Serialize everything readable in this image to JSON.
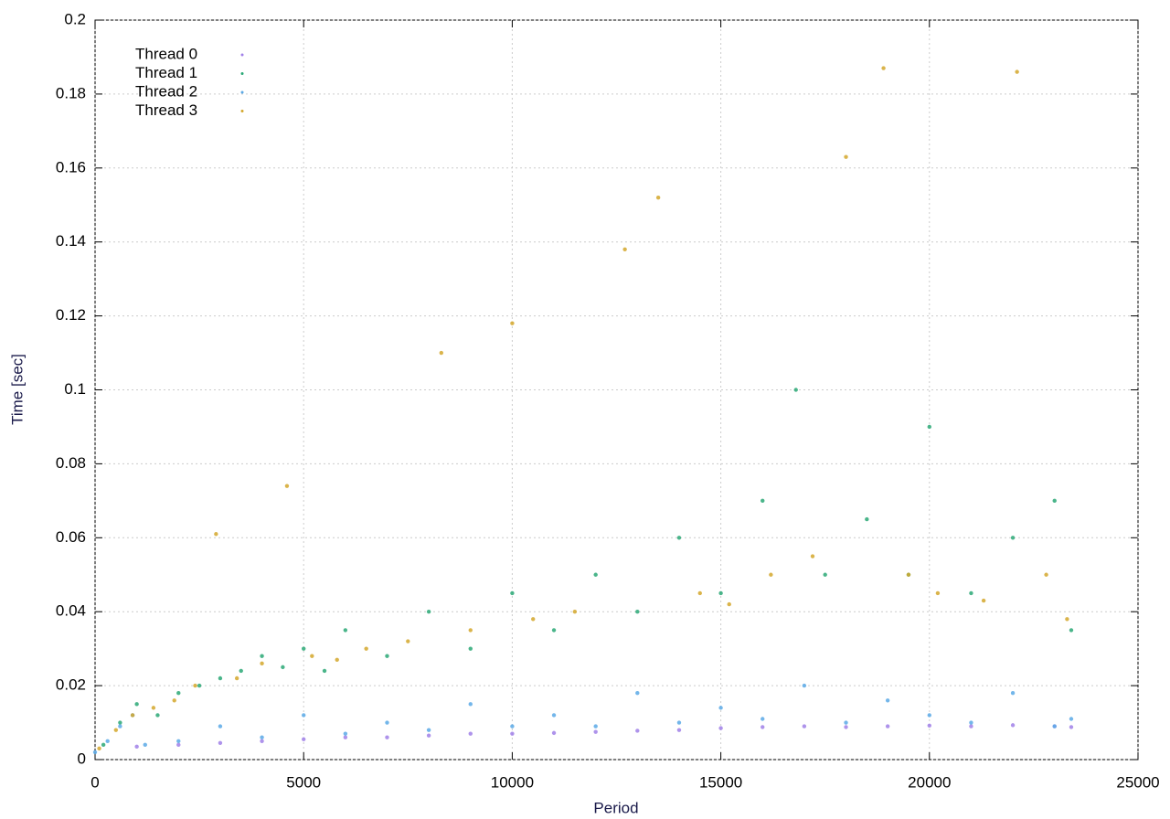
{
  "chart_data": {
    "type": "scatter",
    "xlabel": "Period",
    "ylabel": "Time [sec]",
    "xlim": [
      0,
      25000
    ],
    "xticks": [
      0,
      5000,
      10000,
      15000,
      20000,
      25000
    ],
    "ylim": [
      0,
      0.2
    ],
    "yticks": [
      0,
      0.02,
      0.04,
      0.06,
      0.08,
      0.1,
      0.12,
      0.14,
      0.16,
      0.18,
      0.2
    ],
    "grid": true,
    "legend": "top-left",
    "series": [
      {
        "name": "Thread 0",
        "color": "#a080e8",
        "x": [
          1000,
          2000,
          3000,
          4000,
          5000,
          6000,
          7000,
          8000,
          9000,
          10000,
          11000,
          12000,
          13000,
          14000,
          15000,
          16000,
          17000,
          18000,
          19000,
          20000,
          21000,
          22000,
          23000,
          23400
        ],
        "values": [
          0.0035,
          0.004,
          0.0045,
          0.005,
          0.0055,
          0.006,
          0.006,
          0.0065,
          0.007,
          0.007,
          0.0072,
          0.0075,
          0.0078,
          0.008,
          0.0085,
          0.0088,
          0.009,
          0.0088,
          0.009,
          0.0092,
          0.009,
          0.0093,
          0.009,
          0.0088
        ]
      },
      {
        "name": "Thread 1",
        "color": "#2aa876",
        "x": [
          200,
          600,
          1000,
          1500,
          2000,
          2500,
          3000,
          3500,
          4000,
          4500,
          5000,
          5500,
          6000,
          7000,
          8000,
          9000,
          10000,
          11000,
          12000,
          13000,
          14000,
          15000,
          16000,
          16800,
          17500,
          18500,
          19500,
          20000,
          21000,
          22000,
          23000,
          23400
        ],
        "values": [
          0.004,
          0.01,
          0.015,
          0.012,
          0.018,
          0.02,
          0.022,
          0.024,
          0.028,
          0.025,
          0.03,
          0.024,
          0.035,
          0.028,
          0.04,
          0.03,
          0.045,
          0.035,
          0.05,
          0.04,
          0.06,
          0.045,
          0.07,
          0.1,
          0.05,
          0.065,
          0.05,
          0.09,
          0.045,
          0.06,
          0.07,
          0.035
        ]
      },
      {
        "name": "Thread 2",
        "color": "#5aa9e6",
        "x": [
          0,
          300,
          600,
          900,
          1200,
          2000,
          3000,
          4000,
          5000,
          6000,
          7000,
          8000,
          9000,
          10000,
          11000,
          12000,
          13000,
          14000,
          15000,
          16000,
          17000,
          18000,
          19000,
          20000,
          21000,
          22000,
          23000,
          23400
        ],
        "values": [
          0.002,
          0.005,
          0.009,
          0.012,
          0.004,
          0.005,
          0.009,
          0.006,
          0.012,
          0.007,
          0.01,
          0.008,
          0.015,
          0.009,
          0.012,
          0.009,
          0.018,
          0.01,
          0.014,
          0.011,
          0.02,
          0.01,
          0.016,
          0.012,
          0.01,
          0.018,
          0.009,
          0.011
        ]
      },
      {
        "name": "Thread 3",
        "color": "#d4a72c",
        "x": [
          100,
          500,
          900,
          1400,
          1900,
          2400,
          2900,
          3400,
          4000,
          4600,
          5200,
          5800,
          6500,
          7500,
          8300,
          9000,
          10000,
          10500,
          11500,
          12700,
          13500,
          14500,
          15200,
          16200,
          17200,
          18000,
          18900,
          19500,
          20200,
          21300,
          22100,
          22800,
          23300
        ],
        "values": [
          0.003,
          0.008,
          0.012,
          0.014,
          0.016,
          0.02,
          0.061,
          0.022,
          0.026,
          0.074,
          0.028,
          0.027,
          0.03,
          0.032,
          0.11,
          0.035,
          0.118,
          0.038,
          0.04,
          0.138,
          0.152,
          0.045,
          0.042,
          0.05,
          0.055,
          0.163,
          0.187,
          0.05,
          0.045,
          0.043,
          0.186,
          0.05,
          0.038
        ]
      }
    ]
  }
}
